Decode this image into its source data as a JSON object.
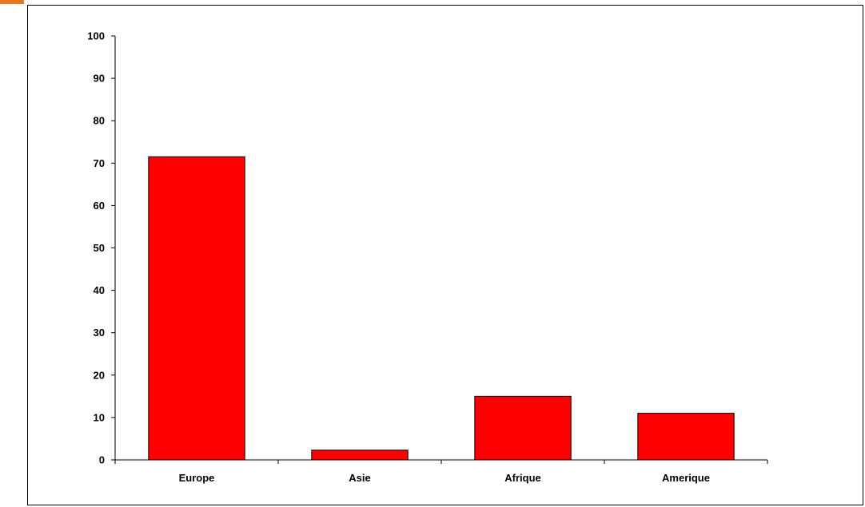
{
  "chart_data": {
    "type": "bar",
    "title": "",
    "xlabel": "",
    "ylabel": "",
    "categories": [
      "Europe",
      "Asie",
      "Afrique",
      "Amerique"
    ],
    "values": [
      71.5,
      2.3,
      15,
      11
    ],
    "ylim": [
      0,
      100
    ],
    "yticks": [
      0,
      10,
      20,
      30,
      40,
      50,
      60,
      70,
      80,
      90,
      100
    ],
    "bar_color": "#ff0000",
    "grid": false,
    "legend": "none"
  }
}
